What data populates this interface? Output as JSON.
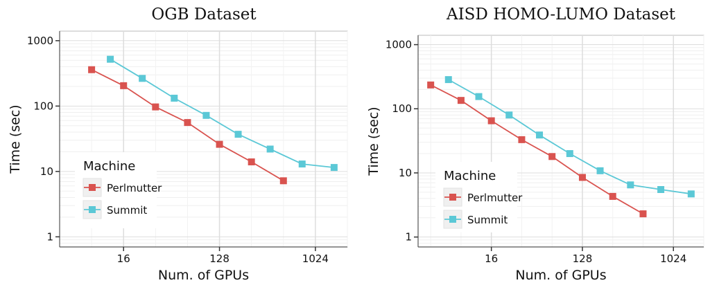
{
  "chart_data": [
    {
      "type": "line",
      "title": "OGB Dataset",
      "xlabel": "Num. of GPUs",
      "ylabel": "Time (sec)",
      "x_scale": "log2",
      "y_scale": "log10",
      "xlim": [
        4,
        2048
      ],
      "ylim": [
        0.7,
        1400
      ],
      "xticks": [
        16,
        128,
        1024
      ],
      "xtick_labels": [
        "16",
        "128",
        "1024"
      ],
      "yticks": [
        1,
        10,
        100,
        1000
      ],
      "ytick_labels": [
        "1",
        "10",
        "100",
        "1000"
      ],
      "grid": true,
      "legend": {
        "title": "Machine",
        "position": "bottom-left"
      },
      "series": [
        {
          "name": "Perlmutter",
          "color": "#d9534f",
          "x": [
            8,
            16,
            32,
            64,
            128,
            256,
            512
          ],
          "y": [
            360,
            205,
            97,
            56,
            26,
            14,
            7.2
          ]
        },
        {
          "name": "Summit",
          "color": "#5bc8d6",
          "x": [
            12,
            24,
            48,
            96,
            192,
            384,
            768,
            1536
          ],
          "y": [
            520,
            265,
            132,
            72,
            37,
            22,
            13,
            11.5
          ]
        }
      ]
    },
    {
      "type": "line",
      "title": "AISD HOMO-LUMO Dataset",
      "xlabel": "Num. of GPUs",
      "ylabel": "Time (sec)",
      "x_scale": "log2",
      "y_scale": "log10",
      "xlim": [
        3,
        2048
      ],
      "ylim": [
        0.7,
        1400
      ],
      "xticks": [
        16,
        128,
        1024
      ],
      "xtick_labels": [
        "16",
        "128",
        "1024"
      ],
      "yticks": [
        1,
        10,
        100,
        1000
      ],
      "ytick_labels": [
        "1",
        "10",
        "100",
        "1000"
      ],
      "grid": true,
      "legend": {
        "title": "Machine",
        "position": "bottom-left"
      },
      "series": [
        {
          "name": "Perlmutter",
          "color": "#d9534f",
          "x": [
            4,
            8,
            16,
            32,
            64,
            128,
            256,
            512
          ],
          "y": [
            235,
            135,
            65,
            33,
            18,
            8.5,
            4.3,
            2.3
          ]
        },
        {
          "name": "Summit",
          "color": "#5bc8d6",
          "x": [
            6,
            12,
            24,
            48,
            96,
            192,
            384,
            768,
            1536
          ],
          "y": [
            285,
            155,
            80,
            39,
            20,
            10.8,
            6.5,
            5.5,
            4.7
          ]
        }
      ]
    }
  ]
}
